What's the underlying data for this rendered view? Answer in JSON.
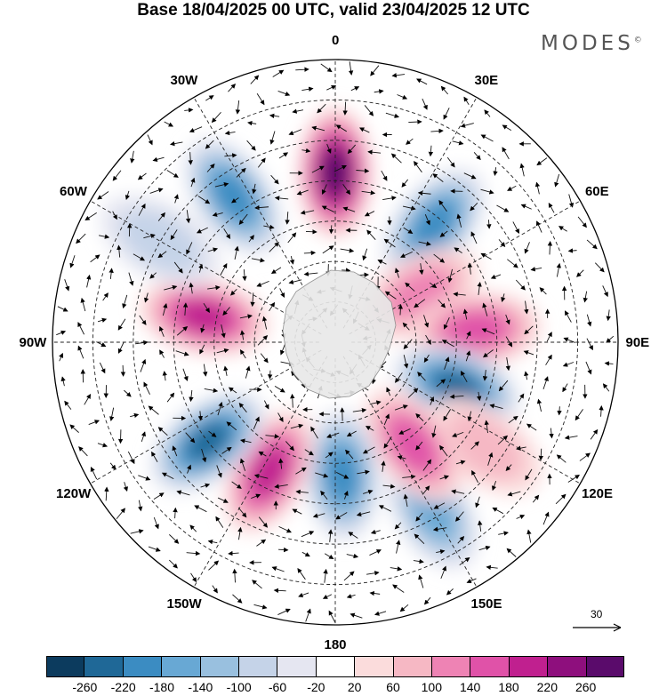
{
  "title": "Base 18/04/2025 00 UTC, valid 23/04/2025 12 UTC",
  "logo": "MODES",
  "logo_mark": "©",
  "longitude_labels": [
    {
      "text": "0",
      "bearing": 0
    },
    {
      "text": "30E",
      "bearing": 30
    },
    {
      "text": "60E",
      "bearing": 60
    },
    {
      "text": "90E",
      "bearing": 90
    },
    {
      "text": "120E",
      "bearing": 120
    },
    {
      "text": "150E",
      "bearing": 150
    },
    {
      "text": "180",
      "bearing": 180
    },
    {
      "text": "150W",
      "bearing": 210
    },
    {
      "text": "120W",
      "bearing": 240
    },
    {
      "text": "90W",
      "bearing": 270
    },
    {
      "text": "60W",
      "bearing": 300
    },
    {
      "text": "30W",
      "bearing": 330
    }
  ],
  "reference_vector": "30",
  "colorbar": {
    "colors": [
      "#0c3b5e",
      "#1f6897",
      "#3b8cc2",
      "#68a8d4",
      "#99c0df",
      "#c5d3e8",
      "#e5e6f1",
      "#ffffff",
      "#fbdcdc",
      "#f6b8c4",
      "#ee83b4",
      "#e052a8",
      "#c0208f",
      "#8e0f7d",
      "#5a0b6b"
    ],
    "tick_labels": [
      "-260",
      "-220",
      "-180",
      "-140",
      "-100",
      "-60",
      "-20",
      "20",
      "60",
      "100",
      "140",
      "180",
      "220",
      "260"
    ]
  },
  "anomaly_centers": [
    {
      "lon": 0,
      "lat": -48,
      "value": 250
    },
    {
      "lon": -35,
      "lat": -46,
      "value": -200
    },
    {
      "lon": 40,
      "lat": -52,
      "value": -170
    },
    {
      "lon": 60,
      "lat": -66,
      "value": 100
    },
    {
      "lon": 85,
      "lat": -55,
      "value": 160
    },
    {
      "lon": 110,
      "lat": -58,
      "value": -210
    },
    {
      "lon": 125,
      "lat": -45,
      "value": 80
    },
    {
      "lon": 150,
      "lat": -42,
      "value": -160
    },
    {
      "lon": 143,
      "lat": -58,
      "value": 140
    },
    {
      "lon": 177,
      "lat": -57,
      "value": -190
    },
    {
      "lon": 207,
      "lat": -54,
      "value": 190
    },
    {
      "lon": 232,
      "lat": -50,
      "value": -220
    },
    {
      "lon": 281,
      "lat": -57,
      "value": 200
    },
    {
      "lon": 300,
      "lat": -40,
      "value": -80
    }
  ]
}
